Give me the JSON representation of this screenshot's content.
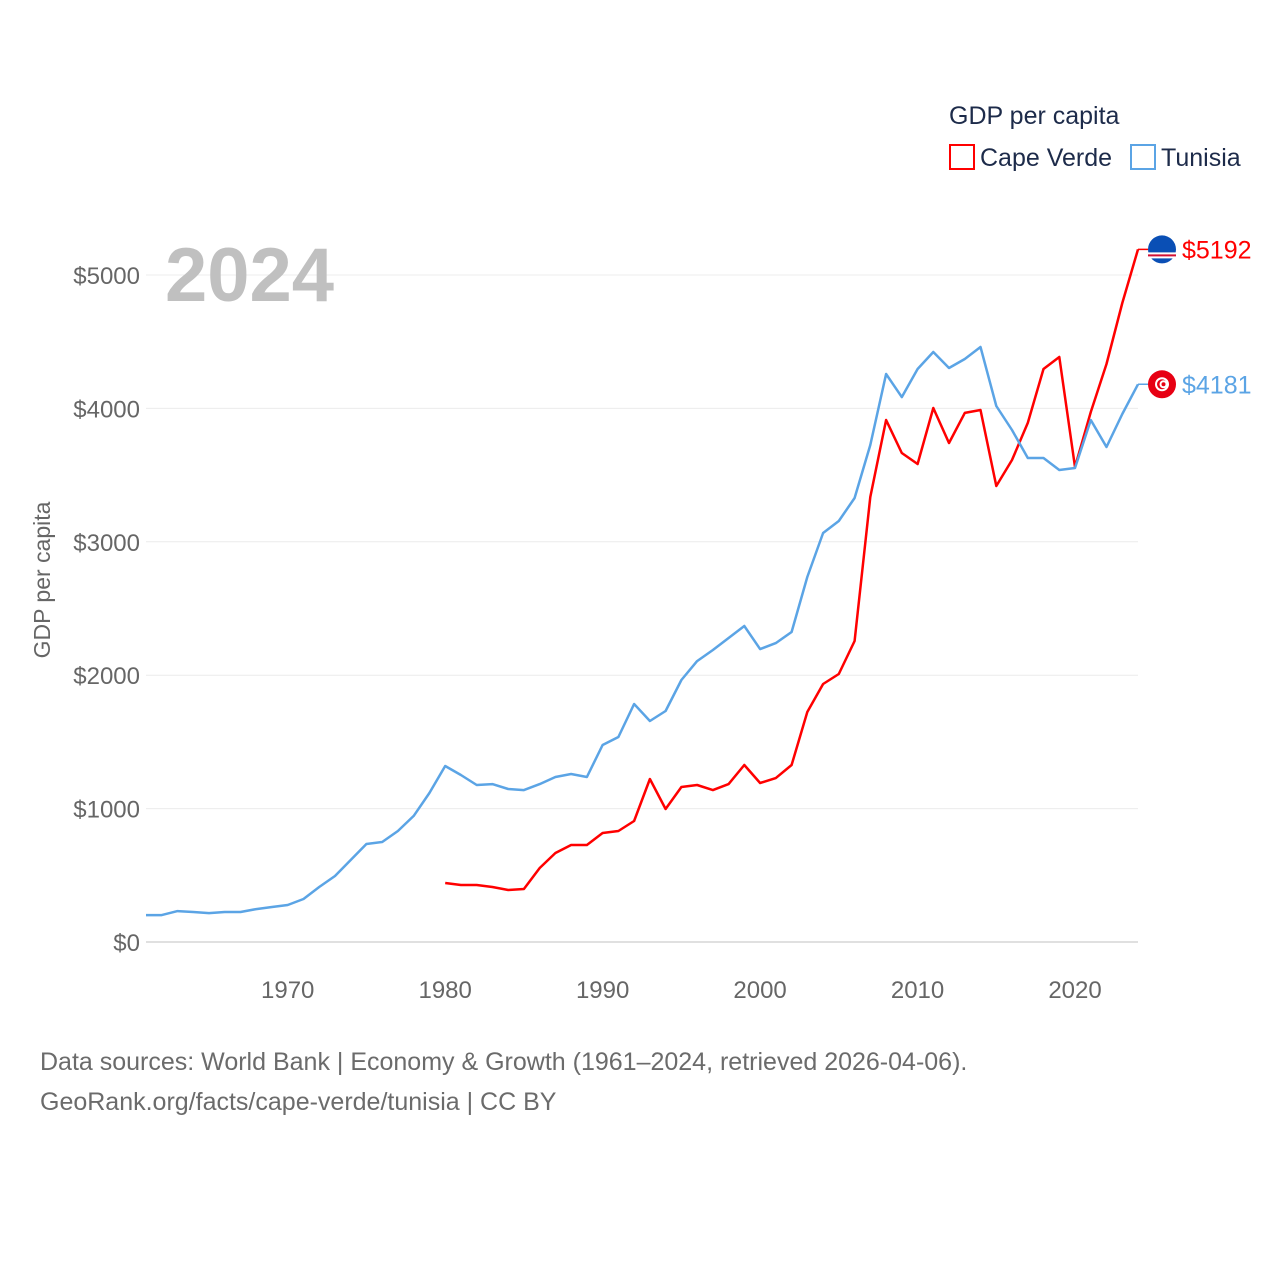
{
  "chart_data": {
    "type": "line",
    "title": "GDP per capita",
    "ylabel": "GDP per capita",
    "xlabel": "",
    "year_label": "2024",
    "ylim": [
      0,
      5300
    ],
    "xlim": [
      1961,
      2024
    ],
    "grid": true,
    "legend_placement": "top-right",
    "y_ticks": [
      0,
      1000,
      2000,
      3000,
      4000,
      5000
    ],
    "y_tick_labels": [
      "$0",
      "$1000",
      "$2000",
      "$3000",
      "$4000",
      "$5000"
    ],
    "x_ticks": [
      1970,
      1980,
      1990,
      2000,
      2010,
      2020
    ],
    "x_tick_labels": [
      "1970",
      "1980",
      "1990",
      "2000",
      "2010",
      "2020"
    ],
    "series": [
      {
        "name": "Cape Verde",
        "color": "#ff0000",
        "end_label": "$5192",
        "flag": "cape-verde-flag",
        "x": [
          1980,
          1981,
          1982,
          1983,
          1984,
          1985,
          1986,
          1987,
          1988,
          1989,
          1990,
          1991,
          1992,
          1993,
          1994,
          1995,
          1996,
          1997,
          1998,
          1999,
          2000,
          2001,
          2002,
          2003,
          2004,
          2005,
          2006,
          2007,
          2008,
          2009,
          2010,
          2011,
          2012,
          2013,
          2014,
          2015,
          2016,
          2017,
          2018,
          2019,
          2020,
          2021,
          2022,
          2023,
          2024
        ],
        "values": [
          442,
          427,
          427,
          412,
          390,
          397,
          555,
          667,
          727,
          727,
          817,
          832,
          907,
          1222,
          997,
          1162,
          1177,
          1139,
          1184,
          1327,
          1192,
          1229,
          1327,
          1724,
          1934,
          2009,
          2256,
          3336,
          3913,
          3666,
          3583,
          4003,
          3741,
          3966,
          3988,
          3418,
          3613,
          3891,
          4295,
          4385,
          3561,
          3973,
          4333,
          4790,
          5192
        ]
      },
      {
        "name": "Tunisia",
        "color": "#5ba4e5",
        "end_label": "$4181",
        "flag": "tunisia-flag",
        "x": [
          1961,
          1962,
          1963,
          1964,
          1965,
          1966,
          1967,
          1968,
          1969,
          1970,
          1971,
          1972,
          1973,
          1974,
          1975,
          1976,
          1977,
          1978,
          1979,
          1980,
          1981,
          1982,
          1983,
          1984,
          1985,
          1986,
          1987,
          1988,
          1989,
          1990,
          1991,
          1992,
          1993,
          1994,
          1995,
          1996,
          1997,
          1998,
          1999,
          2000,
          2001,
          2002,
          2003,
          2004,
          2005,
          2006,
          2007,
          2008,
          2009,
          2010,
          2011,
          2012,
          2013,
          2014,
          2015,
          2016,
          2017,
          2018,
          2019,
          2020,
          2021,
          2022,
          2023,
          2024
        ],
        "values": [
          202,
          202,
          232,
          225,
          217,
          225,
          225,
          247,
          262,
          277,
          322,
          412,
          495,
          615,
          735,
          750,
          832,
          945,
          1117,
          1319,
          1252,
          1177,
          1184,
          1147,
          1139,
          1184,
          1237,
          1259,
          1237,
          1477,
          1537,
          1784,
          1657,
          1732,
          1964,
          2106,
          2189,
          2279,
          2369,
          2196,
          2241,
          2324,
          2736,
          3066,
          3156,
          3328,
          3726,
          4258,
          4085,
          4295,
          4423,
          4303,
          4370,
          4460,
          4018,
          3838,
          3628,
          3628,
          3538,
          3553,
          3913,
          3711,
          3958,
          4181
        ]
      }
    ]
  },
  "footer": {
    "line1": "Data sources: World Bank | Economy & Growth (1961–2024, retrieved 2026-04-06).",
    "line2": "GeoRank.org/facts/cape-verde/tunisia | CC BY"
  }
}
